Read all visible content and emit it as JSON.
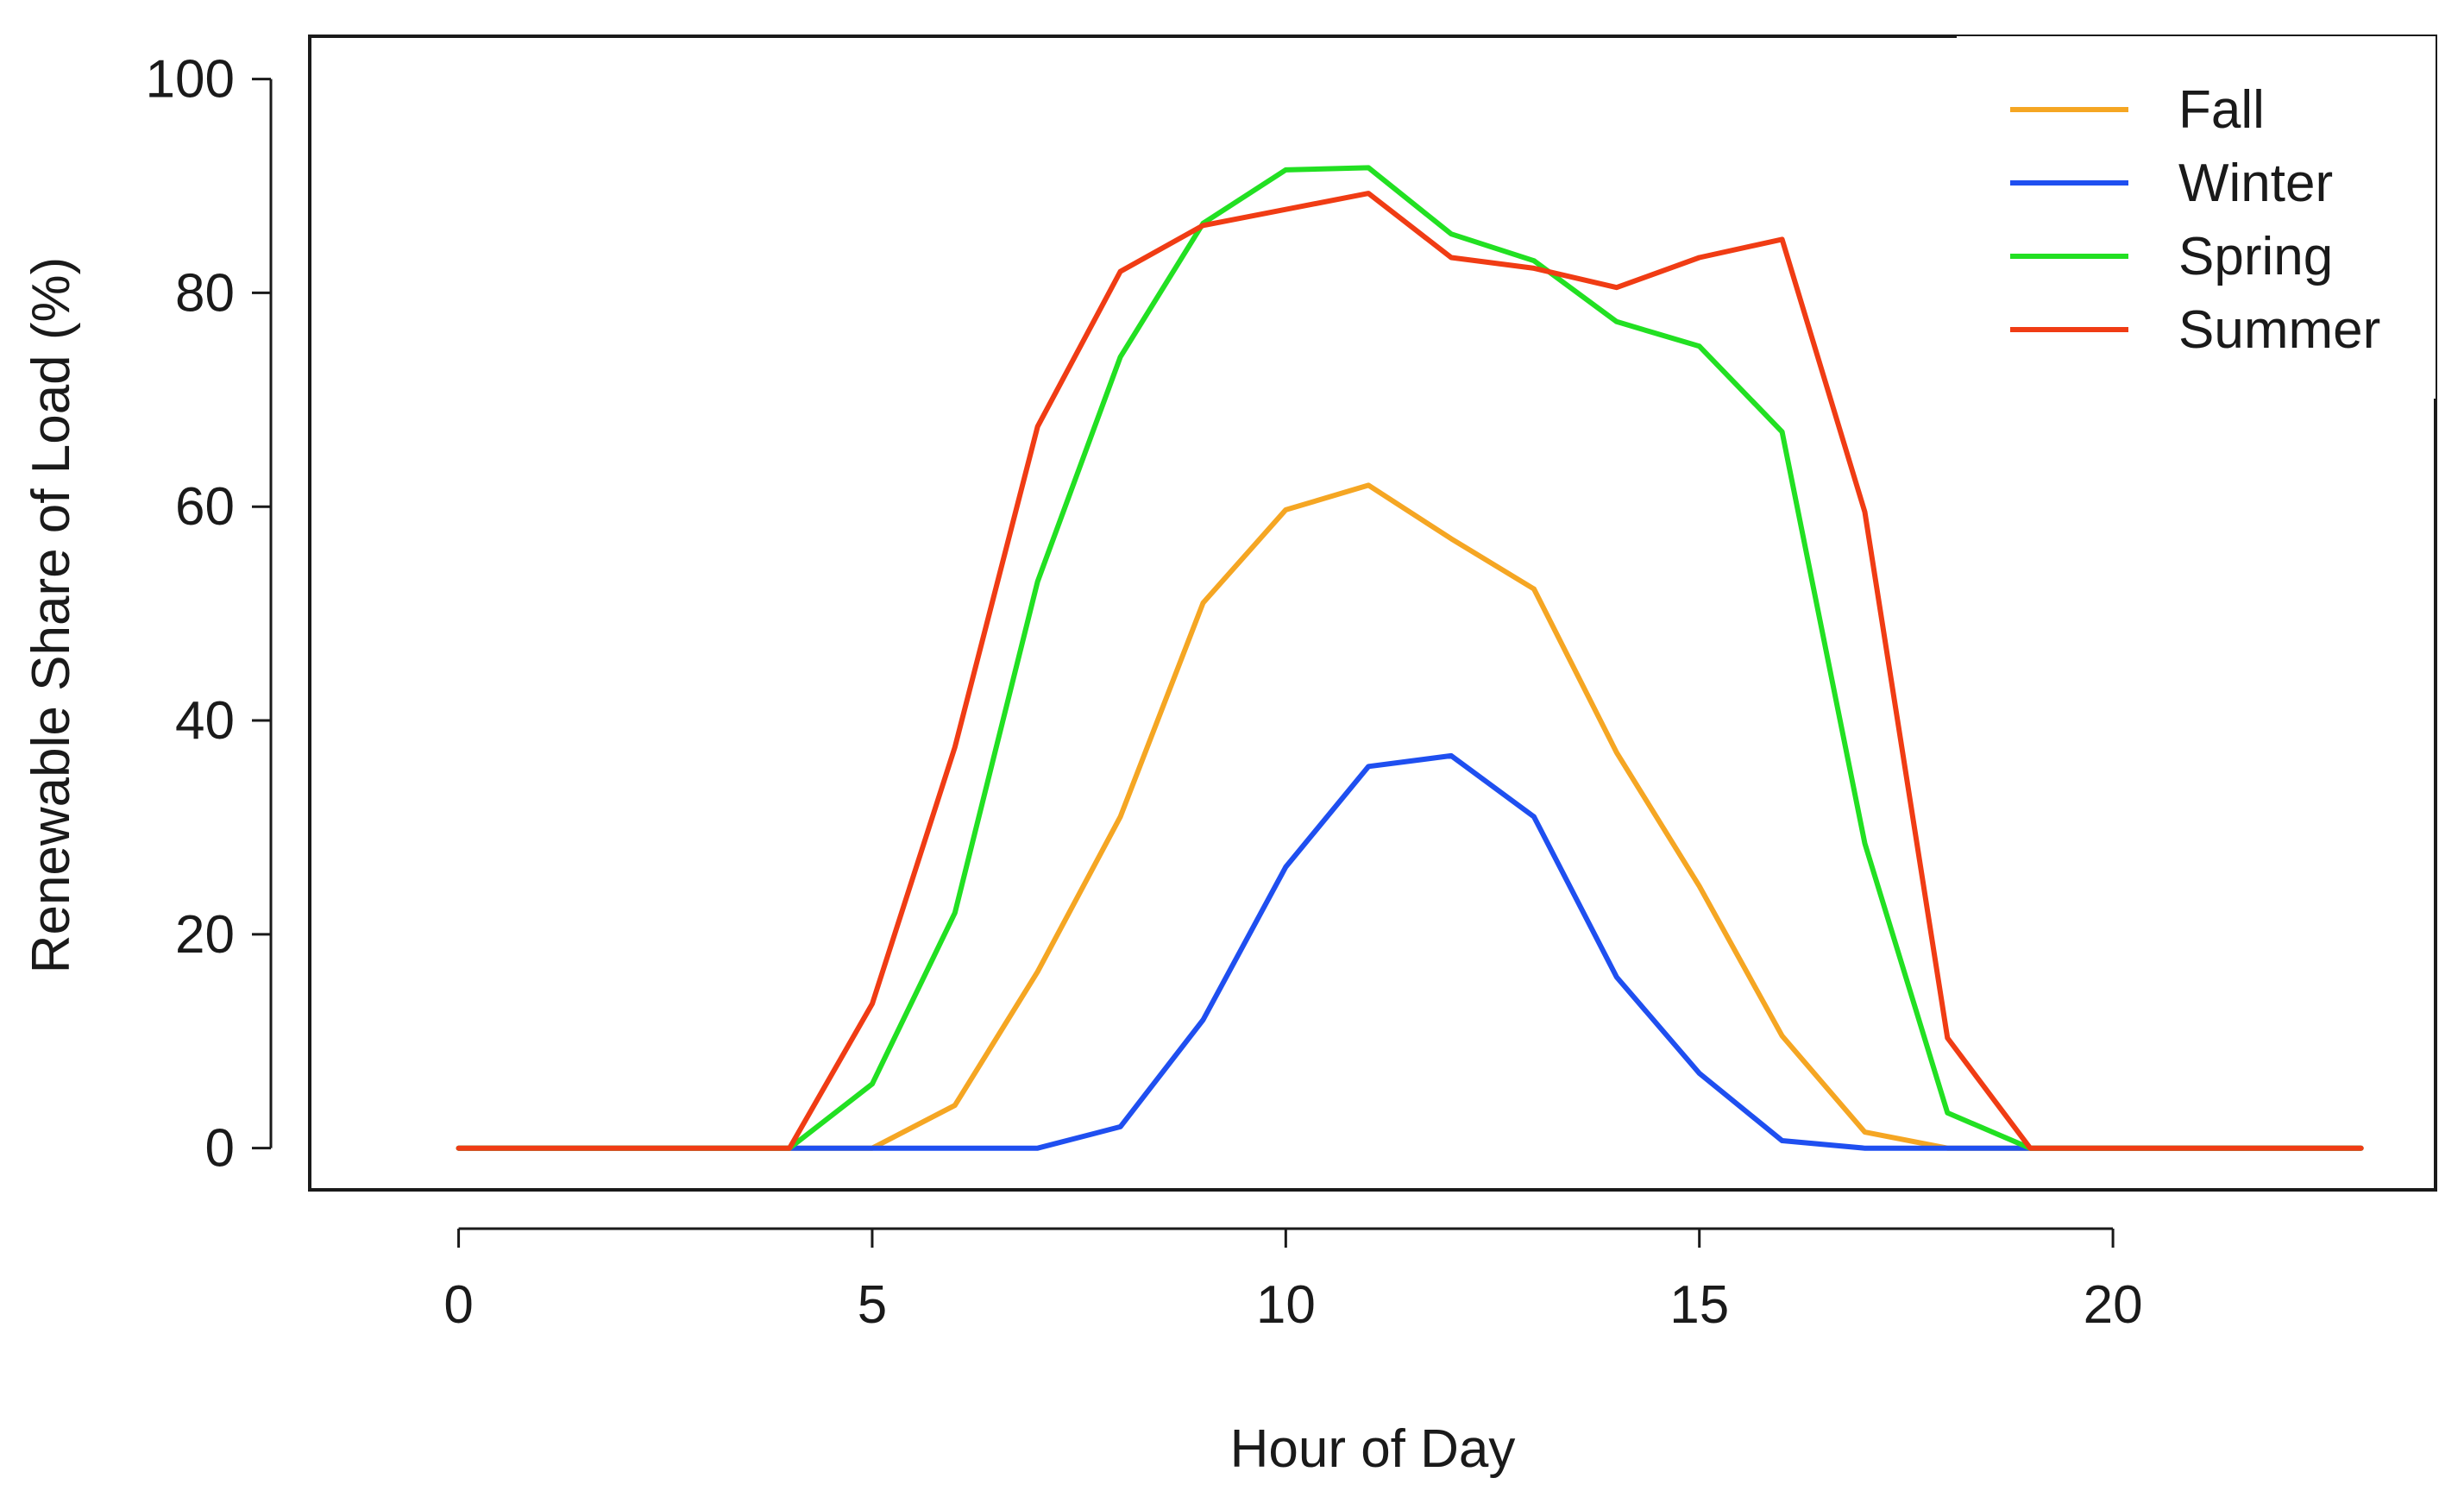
{
  "chart_data": {
    "type": "line",
    "title": "",
    "xlabel": "Hour of Day",
    "ylabel": "Renewable Share of Load (%)",
    "xlim": [
      -1.8,
      23.9
    ],
    "ylim": [
      -3.9,
      104
    ],
    "xticks": [
      0,
      5,
      10,
      15,
      20
    ],
    "yticks": [
      0,
      20,
      40,
      60,
      80,
      100
    ],
    "x": [
      0,
      1,
      2,
      3,
      4,
      5,
      6,
      7,
      8,
      9,
      10,
      11,
      12,
      13,
      14,
      15,
      16,
      17,
      18,
      19,
      20,
      21,
      22,
      23
    ],
    "legend_position": "top-right",
    "series": [
      {
        "name": "Fall",
        "color": "#F5A623",
        "values": [
          0,
          0,
          0,
          0,
          0,
          0,
          4,
          16.5,
          31,
          51,
          59.7,
          62,
          57,
          52.3,
          37,
          24.5,
          10.5,
          1.5,
          0,
          0,
          0,
          0,
          0,
          0
        ]
      },
      {
        "name": "Winter",
        "color": "#1F4FF0",
        "values": [
          0,
          0,
          0,
          0,
          0,
          0,
          0,
          0,
          2,
          12,
          26.3,
          35.7,
          36.7,
          31,
          16,
          7,
          0.7,
          0,
          0,
          0,
          0,
          0,
          0,
          0
        ]
      },
      {
        "name": "Spring",
        "color": "#22E022",
        "values": [
          0,
          0,
          0,
          0,
          0,
          6,
          22,
          53,
          74,
          86.5,
          91.5,
          91.7,
          85.5,
          83,
          77.3,
          75,
          67,
          28.5,
          3.3,
          0,
          0,
          0,
          0,
          0
        ]
      },
      {
        "name": "Summer",
        "color": "#F03C14",
        "values": [
          0,
          0,
          0,
          0,
          0,
          13.5,
          37.5,
          67.5,
          82,
          86.3,
          87.8,
          89.3,
          83.3,
          82.3,
          80.5,
          83.3,
          85,
          59.5,
          10.3,
          0,
          0,
          0,
          0,
          0
        ]
      }
    ]
  }
}
